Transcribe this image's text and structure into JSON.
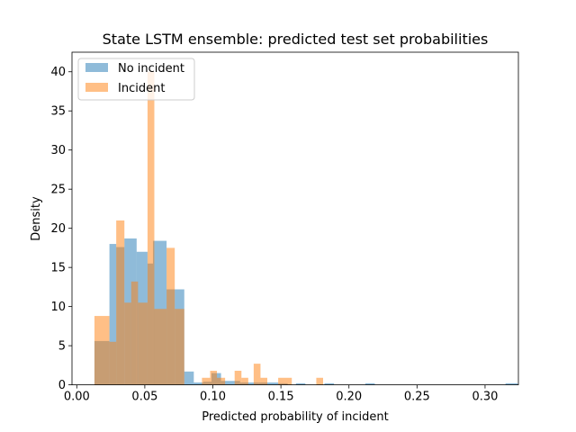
{
  "chart_data": {
    "type": "histogram",
    "title": "State LSTM ensemble: predicted test set probabilities",
    "xlabel": "Predicted probability of incident",
    "ylabel": "Density",
    "xlim": [
      -0.0035,
      0.3245
    ],
    "ylim": [
      0,
      42.5
    ],
    "xticks": [
      "0.00",
      "0.05",
      "0.10",
      "0.15",
      "0.20",
      "0.25",
      "0.30"
    ],
    "yticks": [
      "0",
      "5",
      "10",
      "15",
      "20",
      "25",
      "30",
      "35",
      "40"
    ],
    "grid": false,
    "legend": "upper-left",
    "series": [
      {
        "name": "No incident",
        "color": "#1f77b4",
        "alpha": 0.5,
        "bins": [
          [
            0.013,
            0.024,
            5.6
          ],
          [
            0.024,
            0.029,
            18.0
          ],
          [
            0.029,
            0.035,
            17.6
          ],
          [
            0.035,
            0.044,
            18.7
          ],
          [
            0.044,
            0.052,
            17.0
          ],
          [
            0.052,
            0.056,
            15.5
          ],
          [
            0.056,
            0.066,
            18.4
          ],
          [
            0.066,
            0.072,
            12.2
          ],
          [
            0.072,
            0.079,
            12.2
          ],
          [
            0.079,
            0.086,
            1.7
          ],
          [
            0.086,
            0.093,
            0.3
          ],
          [
            0.093,
            0.099,
            0.4
          ],
          [
            0.099,
            0.106,
            1.5
          ],
          [
            0.106,
            0.12,
            0.5
          ],
          [
            0.12,
            0.127,
            0.3
          ],
          [
            0.127,
            0.134,
            0.3
          ],
          [
            0.134,
            0.148,
            0.3
          ],
          [
            0.148,
            0.155,
            0.2
          ],
          [
            0.161,
            0.168,
            0.2
          ],
          [
            0.182,
            0.189,
            0.2
          ],
          [
            0.212,
            0.219,
            0.2
          ],
          [
            0.315,
            0.324,
            0.2
          ]
        ]
      },
      {
        "name": "Incident",
        "color": "#ff7f0e",
        "alpha": 0.5,
        "bins": [
          [
            0.013,
            0.024,
            8.8
          ],
          [
            0.024,
            0.029,
            5.5
          ],
          [
            0.029,
            0.035,
            21.0
          ],
          [
            0.035,
            0.04,
            10.5
          ],
          [
            0.04,
            0.045,
            13.2
          ],
          [
            0.045,
            0.052,
            10.5
          ],
          [
            0.052,
            0.057,
            40.0
          ],
          [
            0.057,
            0.066,
            9.7
          ],
          [
            0.066,
            0.072,
            17.5
          ],
          [
            0.072,
            0.079,
            9.7
          ],
          [
            0.092,
            0.098,
            0.9
          ],
          [
            0.098,
            0.103,
            1.8
          ],
          [
            0.103,
            0.109,
            0.9
          ],
          [
            0.116,
            0.121,
            1.8
          ],
          [
            0.121,
            0.126,
            0.9
          ],
          [
            0.13,
            0.135,
            2.7
          ],
          [
            0.135,
            0.14,
            0.9
          ],
          [
            0.148,
            0.158,
            0.9
          ],
          [
            0.176,
            0.181,
            0.9
          ]
        ]
      }
    ]
  }
}
